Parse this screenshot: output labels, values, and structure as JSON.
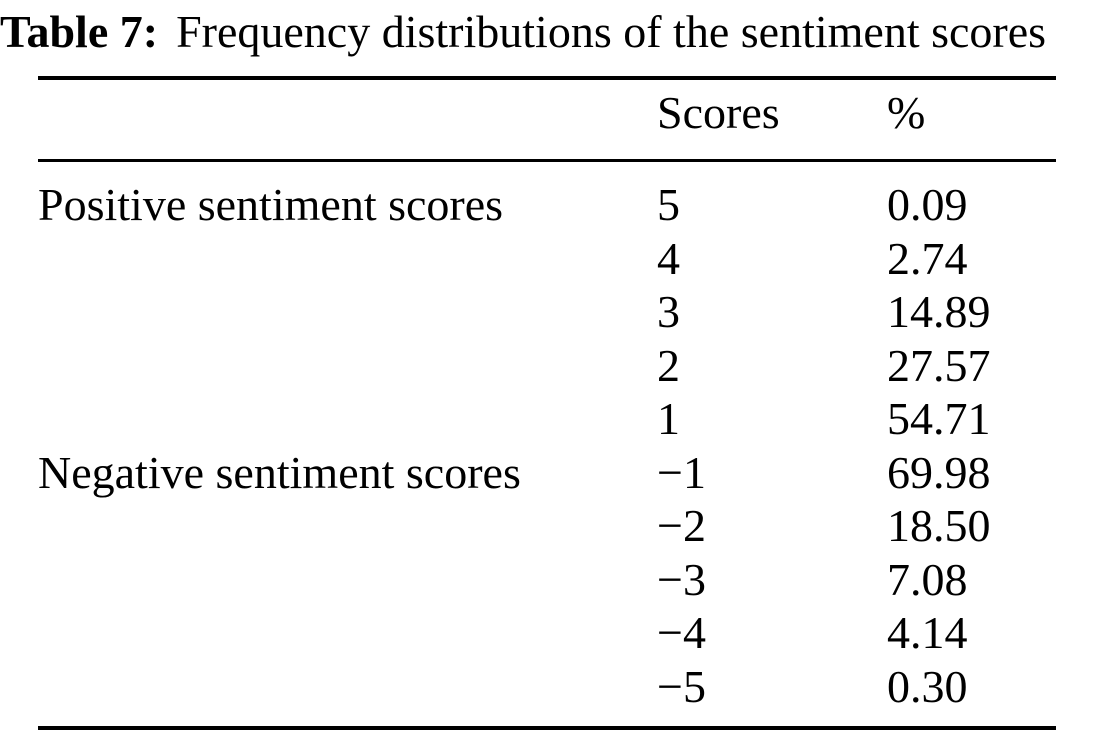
{
  "caption": {
    "label": "Table 7:",
    "text": "Frequency distributions of the sentiment scores"
  },
  "table": {
    "headers": {
      "group": "",
      "scores": "Scores",
      "percent": "%"
    },
    "rows": [
      {
        "group": "Positive sentiment scores",
        "score": "5",
        "percent": "0.09"
      },
      {
        "group": "",
        "score": "4",
        "percent": "2.74"
      },
      {
        "group": "",
        "score": "3",
        "percent": "14.89"
      },
      {
        "group": "",
        "score": "2",
        "percent": "27.57"
      },
      {
        "group": "",
        "score": "1",
        "percent": "54.71"
      },
      {
        "group": "Negative sentiment scores",
        "score": "−1",
        "percent": "69.98"
      },
      {
        "group": "",
        "score": "−2",
        "percent": "18.50"
      },
      {
        "group": "",
        "score": "−3",
        "percent": "7.08"
      },
      {
        "group": "",
        "score": "−4",
        "percent": "4.14"
      },
      {
        "group": "",
        "score": "−5",
        "percent": "0.30"
      }
    ]
  },
  "colors": {
    "text": "#000000",
    "background": "#ffffff",
    "rule": "#000000"
  },
  "chart_data": {
    "type": "table",
    "title": "Table 7: Frequency distributions of the sentiment scores",
    "columns": [
      "",
      "Scores",
      "%"
    ],
    "groups": [
      {
        "label": "Positive sentiment scores",
        "scores": [
          5,
          4,
          3,
          2,
          1
        ],
        "percent": [
          0.09,
          2.74,
          14.89,
          27.57,
          54.71
        ]
      },
      {
        "label": "Negative sentiment scores",
        "scores": [
          -1,
          -2,
          -3,
          -4,
          -5
        ],
        "percent": [
          69.98,
          18.5,
          7.08,
          4.14,
          0.3
        ]
      }
    ]
  }
}
